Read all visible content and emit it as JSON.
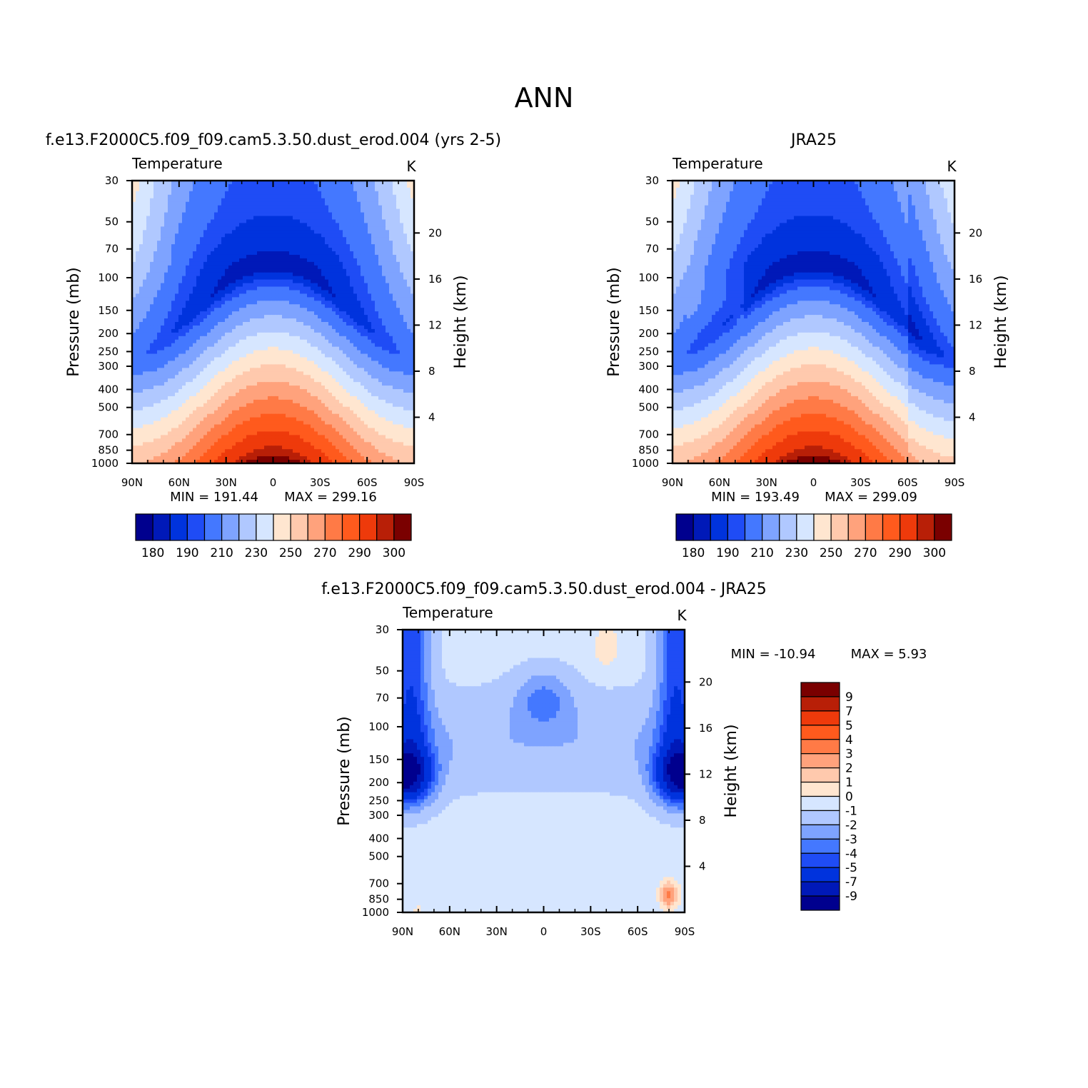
{
  "title": "ANN",
  "palette": {
    "full": [
      "#00008e",
      "#0019b8",
      "#0033dd",
      "#1f4cf5",
      "#4478ff",
      "#7ea3ff",
      "#b0c8ff",
      "#d6e6ff",
      "#ffe6d0",
      "#ffc9ad",
      "#ffa27c",
      "#ff7a46",
      "#ff5a1d",
      "#ee3a0b",
      "#b81f07",
      "#7a0000"
    ],
    "diff": [
      "#00008e",
      "#0019b8",
      "#0033dd",
      "#1f4cf5",
      "#4478ff",
      "#7ea3ff",
      "#b0c8ff",
      "#d6e6ff",
      "#ffe6d0",
      "#ffc9ad",
      "#ffa27c",
      "#ff7a46",
      "#ff5a1d",
      "#ee3a0b",
      "#b81f07",
      "#7a0000"
    ]
  },
  "chart_data": [
    {
      "type": "heatmap",
      "panel_title": "f.e13.F2000C5.f09_f09.cam5.3.50.dust_erod.004 (yrs 2-5)",
      "variable": "Temperature",
      "units": "K",
      "xlabel": "",
      "ylabel": "Pressure (mb)",
      "ylabel_right": "Height (km)",
      "x_ticks": [
        "90N",
        "60N",
        "30N",
        "0",
        "30S",
        "60S",
        "90S"
      ],
      "x_values": [
        90,
        60,
        30,
        0,
        -30,
        -60,
        -90
      ],
      "y_ticks": [
        "30",
        "50",
        "70",
        "100",
        "150",
        "200",
        "250",
        "300",
        "400",
        "500",
        "700",
        "850",
        "1000"
      ],
      "height_ticks": [
        "20",
        "16",
        "12",
        "8",
        "4"
      ],
      "min_label": "MIN = 191.44",
      "max_label": "MAX = 299.16",
      "min": 191.44,
      "max": 299.16,
      "colorbar_labels": [
        "180",
        "190",
        "210",
        "230",
        "250",
        "270",
        "290",
        "300"
      ],
      "levels": [
        175,
        180,
        185,
        190,
        200,
        210,
        220,
        230,
        240,
        250,
        260,
        270,
        280,
        290,
        295,
        300
      ],
      "variant": 0
    },
    {
      "type": "heatmap",
      "panel_title": "JRA25",
      "variable": "Temperature",
      "units": "K",
      "xlabel": "",
      "ylabel": "Pressure (mb)",
      "ylabel_right": "Height (km)",
      "x_ticks": [
        "90N",
        "60N",
        "30N",
        "0",
        "30S",
        "60S",
        "90S"
      ],
      "x_values": [
        90,
        60,
        30,
        0,
        -30,
        -60,
        -90
      ],
      "y_ticks": [
        "30",
        "50",
        "70",
        "100",
        "150",
        "200",
        "250",
        "300",
        "400",
        "500",
        "700",
        "850",
        "1000"
      ],
      "height_ticks": [
        "20",
        "16",
        "12",
        "8",
        "4"
      ],
      "min_label": "MIN = 193.49",
      "max_label": "MAX = 299.09",
      "min": 193.49,
      "max": 299.09,
      "colorbar_labels": [
        "180",
        "190",
        "210",
        "230",
        "250",
        "270",
        "290",
        "300"
      ],
      "levels": [
        175,
        180,
        185,
        190,
        200,
        210,
        220,
        230,
        240,
        250,
        260,
        270,
        280,
        290,
        295,
        300
      ],
      "variant": 1
    },
    {
      "type": "heatmap",
      "panel_title": "f.e13.F2000C5.f09_f09.cam5.3.50.dust_erod.004 - JRA25",
      "variable": "Temperature",
      "units": "K",
      "xlabel": "",
      "ylabel": "Pressure (mb)",
      "ylabel_right": "Height (km)",
      "x_ticks": [
        "90N",
        "60N",
        "30N",
        "0",
        "30S",
        "60S",
        "90S"
      ],
      "x_values": [
        90,
        60,
        30,
        0,
        -30,
        -60,
        -90
      ],
      "y_ticks": [
        "30",
        "50",
        "70",
        "100",
        "150",
        "200",
        "250",
        "300",
        "400",
        "500",
        "700",
        "850",
        "1000"
      ],
      "height_ticks": [
        "20",
        "16",
        "12",
        "8",
        "4"
      ],
      "min_label": "MIN = -10.94",
      "max_label": "MAX = 5.93",
      "min": -10.94,
      "max": 5.93,
      "colorbar_labels": [
        "9",
        "7",
        "5",
        "4",
        "3",
        "2",
        "1",
        "0",
        "-1",
        "-2",
        "-3",
        "-4",
        "-5",
        "-7",
        "-9"
      ],
      "levels": [
        -9,
        -7,
        -5,
        -4,
        -3,
        -2,
        -1,
        0,
        1,
        2,
        3,
        4,
        5,
        7,
        9
      ]
    }
  ]
}
